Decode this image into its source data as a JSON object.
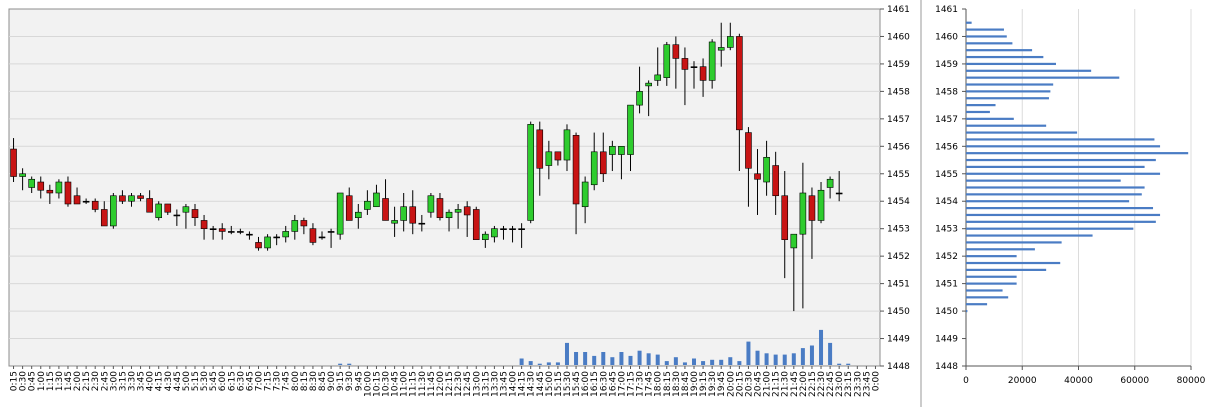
{
  "chart_data": [
    {
      "type": "candlestick",
      "colors": {
        "up": "#2ecc2e",
        "down": "#c81414",
        "volume": "#4a7cc4",
        "plot_bg": "#f2f2f2",
        "grid": "#d8d8d8"
      },
      "ylim": [
        1448,
        1461
      ],
      "yticks": [
        "1448",
        "1449",
        "1450",
        "1451",
        "1452",
        "1453",
        "1454",
        "1455",
        "1456",
        "1457",
        "1458",
        "1459",
        "1460",
        "1461"
      ],
      "xticks": [
        "0:15",
        "0:30",
        "0:45",
        "1:00",
        "1:15",
        "1:30",
        "1:45",
        "2:00",
        "2:15",
        "2:30",
        "2:45",
        "3:00",
        "3:15",
        "3:30",
        "3:45",
        "4:00",
        "4:15",
        "4:30",
        "4:45",
        "5:00",
        "5:15",
        "5:30",
        "5:45",
        "6:00",
        "6:15",
        "6:30",
        "6:45",
        "7:00",
        "7:15",
        "7:30",
        "7:45",
        "8:00",
        "8:15",
        "8:30",
        "8:45",
        "9:00",
        "9:15",
        "9:30",
        "9:45",
        "10:00",
        "10:15",
        "10:30",
        "10:45",
        "11:00",
        "11:15",
        "11:30",
        "11:45",
        "12:00",
        "12:15",
        "12:30",
        "12:45",
        "13:00",
        "13:15",
        "13:30",
        "13:45",
        "14:00",
        "14:15",
        "14:30",
        "14:45",
        "15:00",
        "15:15",
        "15:30",
        "15:45",
        "16:00",
        "16:15",
        "16:30",
        "16:45",
        "17:00",
        "17:15",
        "17:30",
        "17:45",
        "18:00",
        "18:15",
        "18:30",
        "18:45",
        "19:00",
        "19:15",
        "19:30",
        "19:45",
        "20:00",
        "20:15",
        "20:30",
        "20:45",
        "21:00",
        "21:15",
        "21:30",
        "21:45",
        "22:00",
        "22:15",
        "22:30",
        "22:45",
        "23:00",
        "23:15",
        "23:30",
        "23:45",
        "0:00"
      ],
      "candles": [
        {
          "x": "0:15",
          "o": 1455.9,
          "h": 1456.3,
          "l": 1454.7,
          "c": 1454.9
        },
        {
          "x": "0:30",
          "o": 1454.9,
          "h": 1455.2,
          "l": 1454.4,
          "c": 1455.0
        },
        {
          "x": "0:45",
          "o": 1454.5,
          "h": 1454.9,
          "l": 1454.3,
          "c": 1454.8
        },
        {
          "x": "1:00",
          "o": 1454.7,
          "h": 1454.9,
          "l": 1454.1,
          "c": 1454.4
        },
        {
          "x": "1:15",
          "o": 1454.4,
          "h": 1454.6,
          "l": 1453.9,
          "c": 1454.3
        },
        {
          "x": "1:30",
          "o": 1454.3,
          "h": 1454.8,
          "l": 1454.1,
          "c": 1454.7
        },
        {
          "x": "1:45",
          "o": 1454.7,
          "h": 1454.9,
          "l": 1453.8,
          "c": 1453.9
        },
        {
          "x": "2:00",
          "o": 1454.2,
          "h": 1454.5,
          "l": 1453.9,
          "c": 1453.9
        },
        {
          "x": "2:15",
          "o": 1454.0,
          "h": 1454.1,
          "l": 1453.9,
          "c": 1454.0
        },
        {
          "x": "2:30",
          "o": 1454.0,
          "h": 1454.1,
          "l": 1453.6,
          "c": 1453.7
        },
        {
          "x": "2:45",
          "o": 1453.7,
          "h": 1454.0,
          "l": 1453.1,
          "c": 1453.1
        },
        {
          "x": "3:00",
          "o": 1453.1,
          "h": 1454.3,
          "l": 1453.0,
          "c": 1454.2
        },
        {
          "x": "3:15",
          "o": 1454.2,
          "h": 1454.4,
          "l": 1453.9,
          "c": 1454.0
        },
        {
          "x": "3:30",
          "o": 1454.0,
          "h": 1454.3,
          "l": 1453.8,
          "c": 1454.2
        },
        {
          "x": "3:45",
          "o": 1454.2,
          "h": 1454.3,
          "l": 1454.0,
          "c": 1454.1
        },
        {
          "x": "4:00",
          "o": 1454.1,
          "h": 1454.4,
          "l": 1453.6,
          "c": 1453.6
        },
        {
          "x": "4:15",
          "o": 1453.4,
          "h": 1454.0,
          "l": 1453.3,
          "c": 1453.9
        },
        {
          "x": "4:30",
          "o": 1453.9,
          "h": 1453.9,
          "l": 1453.5,
          "c": 1453.6
        },
        {
          "x": "4:45",
          "o": 1453.5,
          "h": 1453.7,
          "l": 1453.1,
          "c": 1453.5
        },
        {
          "x": "5:00",
          "o": 1453.6,
          "h": 1453.9,
          "l": 1453.0,
          "c": 1453.8
        },
        {
          "x": "5:15",
          "o": 1453.7,
          "h": 1453.9,
          "l": 1453.1,
          "c": 1453.4
        },
        {
          "x": "5:30",
          "o": 1453.3,
          "h": 1453.5,
          "l": 1452.6,
          "c": 1453.0
        },
        {
          "x": "5:45",
          "o": 1453.0,
          "h": 1453.1,
          "l": 1452.6,
          "c": 1453.0
        },
        {
          "x": "6:00",
          "o": 1453.0,
          "h": 1453.2,
          "l": 1452.6,
          "c": 1452.9
        },
        {
          "x": "6:15",
          "o": 1452.9,
          "h": 1453.1,
          "l": 1452.8,
          "c": 1452.9
        },
        {
          "x": "6:30",
          "o": 1452.9,
          "h": 1453.0,
          "l": 1452.8,
          "c": 1452.9
        },
        {
          "x": "6:45",
          "o": 1452.8,
          "h": 1452.9,
          "l": 1452.6,
          "c": 1452.8
        },
        {
          "x": "7:00",
          "o": 1452.5,
          "h": 1452.7,
          "l": 1452.2,
          "c": 1452.3
        },
        {
          "x": "7:15",
          "o": 1452.3,
          "h": 1452.8,
          "l": 1452.2,
          "c": 1452.7
        },
        {
          "x": "7:30",
          "o": 1452.7,
          "h": 1452.8,
          "l": 1452.4,
          "c": 1452.7
        },
        {
          "x": "7:45",
          "o": 1452.7,
          "h": 1453.1,
          "l": 1452.5,
          "c": 1452.9
        },
        {
          "x": "8:00",
          "o": 1452.9,
          "h": 1453.5,
          "l": 1452.6,
          "c": 1453.3
        },
        {
          "x": "8:15",
          "o": 1453.3,
          "h": 1453.4,
          "l": 1452.8,
          "c": 1453.1
        },
        {
          "x": "8:30",
          "o": 1453.0,
          "h": 1453.2,
          "l": 1452.4,
          "c": 1452.5
        },
        {
          "x": "8:45",
          "o": 1452.7,
          "h": 1452.9,
          "l": 1452.6,
          "c": 1452.7
        },
        {
          "x": "9:00",
          "o": 1452.9,
          "h": 1453.0,
          "l": 1452.3,
          "c": 1452.9
        },
        {
          "x": "9:15",
          "o": 1452.8,
          "h": 1454.3,
          "l": 1452.6,
          "c": 1454.3
        },
        {
          "x": "9:30",
          "o": 1454.2,
          "h": 1454.5,
          "l": 1453.3,
          "c": 1453.3
        },
        {
          "x": "9:45",
          "o": 1453.4,
          "h": 1453.9,
          "l": 1453.0,
          "c": 1453.6
        },
        {
          "x": "10:00",
          "o": 1453.7,
          "h": 1454.4,
          "l": 1453.5,
          "c": 1454.0
        },
        {
          "x": "10:15",
          "o": 1453.8,
          "h": 1454.6,
          "l": 1453.8,
          "c": 1454.3
        },
        {
          "x": "10:30",
          "o": 1454.1,
          "h": 1454.8,
          "l": 1453.3,
          "c": 1453.3
        },
        {
          "x": "10:45",
          "o": 1453.2,
          "h": 1453.8,
          "l": 1452.7,
          "c": 1453.3
        },
        {
          "x": "11:00",
          "o": 1453.3,
          "h": 1454.3,
          "l": 1452.9,
          "c": 1453.8
        },
        {
          "x": "11:15",
          "o": 1453.8,
          "h": 1454.4,
          "l": 1452.8,
          "c": 1453.2
        },
        {
          "x": "11:30",
          "o": 1453.2,
          "h": 1453.5,
          "l": 1452.9,
          "c": 1453.2
        },
        {
          "x": "11:45",
          "o": 1453.6,
          "h": 1454.3,
          "l": 1453.4,
          "c": 1454.2
        },
        {
          "x": "12:00",
          "o": 1454.1,
          "h": 1454.3,
          "l": 1453.3,
          "c": 1453.4
        },
        {
          "x": "12:15",
          "o": 1453.4,
          "h": 1453.7,
          "l": 1452.9,
          "c": 1453.6
        },
        {
          "x": "12:30",
          "o": 1453.6,
          "h": 1453.9,
          "l": 1453.0,
          "c": 1453.7
        },
        {
          "x": "12:45",
          "o": 1453.8,
          "h": 1454.0,
          "l": 1452.7,
          "c": 1453.5
        },
        {
          "x": "13:00",
          "o": 1453.7,
          "h": 1453.8,
          "l": 1452.6,
          "c": 1452.6
        },
        {
          "x": "13:15",
          "o": 1452.6,
          "h": 1452.9,
          "l": 1452.3,
          "c": 1452.8
        },
        {
          "x": "13:30",
          "o": 1452.7,
          "h": 1453.1,
          "l": 1452.5,
          "c": 1453.0
        },
        {
          "x": "13:45",
          "o": 1453.0,
          "h": 1453.1,
          "l": 1452.6,
          "c": 1453.0
        },
        {
          "x": "14:00",
          "o": 1453.0,
          "h": 1453.1,
          "l": 1452.5,
          "c": 1453.0
        },
        {
          "x": "14:15",
          "o": 1453.0,
          "h": 1453.2,
          "l": 1452.3,
          "c": 1453.0
        },
        {
          "x": "14:30",
          "o": 1453.3,
          "h": 1456.9,
          "l": 1453.2,
          "c": 1456.8
        },
        {
          "x": "14:45",
          "o": 1456.6,
          "h": 1456.9,
          "l": 1454.2,
          "c": 1455.2
        },
        {
          "x": "15:00",
          "o": 1455.3,
          "h": 1456.2,
          "l": 1454.8,
          "c": 1455.8
        },
        {
          "x": "15:15",
          "o": 1455.8,
          "h": 1455.8,
          "l": 1455.3,
          "c": 1455.5
        },
        {
          "x": "15:30",
          "o": 1455.5,
          "h": 1456.8,
          "l": 1455.1,
          "c": 1456.6
        },
        {
          "x": "15:45",
          "o": 1456.4,
          "h": 1456.5,
          "l": 1452.8,
          "c": 1453.9
        },
        {
          "x": "16:00",
          "o": 1453.8,
          "h": 1454.9,
          "l": 1453.2,
          "c": 1454.7
        },
        {
          "x": "16:15",
          "o": 1454.6,
          "h": 1456.5,
          "l": 1454.4,
          "c": 1455.8
        },
        {
          "x": "16:30",
          "o": 1455.8,
          "h": 1456.5,
          "l": 1454.7,
          "c": 1455.0
        },
        {
          "x": "16:45",
          "o": 1455.7,
          "h": 1456.2,
          "l": 1455.1,
          "c": 1456.0
        },
        {
          "x": "17:00",
          "o": 1455.7,
          "h": 1456.0,
          "l": 1454.8,
          "c": 1456.0
        },
        {
          "x": "17:15",
          "o": 1455.7,
          "h": 1457.5,
          "l": 1455.1,
          "c": 1457.5
        },
        {
          "x": "17:30",
          "o": 1457.5,
          "h": 1458.9,
          "l": 1457.2,
          "c": 1458.0
        },
        {
          "x": "17:45",
          "o": 1458.2,
          "h": 1458.4,
          "l": 1457.1,
          "c": 1458.3
        },
        {
          "x": "18:00",
          "o": 1458.4,
          "h": 1459.6,
          "l": 1458.2,
          "c": 1458.6
        },
        {
          "x": "18:15",
          "o": 1458.5,
          "h": 1459.8,
          "l": 1458.2,
          "c": 1459.7
        },
        {
          "x": "18:30",
          "o": 1459.7,
          "h": 1460.0,
          "l": 1458.1,
          "c": 1459.2
        },
        {
          "x": "18:45",
          "o": 1459.2,
          "h": 1459.6,
          "l": 1457.5,
          "c": 1458.8
        },
        {
          "x": "19:00",
          "o": 1458.9,
          "h": 1459.1,
          "l": 1458.1,
          "c": 1458.9
        },
        {
          "x": "19:15",
          "o": 1458.9,
          "h": 1459.2,
          "l": 1457.8,
          "c": 1458.4
        },
        {
          "x": "19:30",
          "o": 1458.4,
          "h": 1459.9,
          "l": 1458.1,
          "c": 1459.8
        },
        {
          "x": "19:45",
          "o": 1459.5,
          "h": 1460.5,
          "l": 1458.9,
          "c": 1459.6
        },
        {
          "x": "20:00",
          "o": 1459.6,
          "h": 1460.5,
          "l": 1459.5,
          "c": 1460.0
        },
        {
          "x": "20:15",
          "o": 1460.0,
          "h": 1460.1,
          "l": 1455.1,
          "c": 1456.6
        },
        {
          "x": "20:30",
          "o": 1456.5,
          "h": 1456.7,
          "l": 1453.8,
          "c": 1455.2
        },
        {
          "x": "20:45",
          "o": 1455.0,
          "h": 1455.9,
          "l": 1453.5,
          "c": 1454.8
        },
        {
          "x": "21:00",
          "o": 1454.7,
          "h": 1456.2,
          "l": 1454.2,
          "c": 1455.6
        },
        {
          "x": "21:15",
          "o": 1455.3,
          "h": 1455.8,
          "l": 1453.5,
          "c": 1454.2
        },
        {
          "x": "21:30",
          "o": 1454.2,
          "h": 1455.1,
          "l": 1451.2,
          "c": 1452.6
        },
        {
          "x": "21:45",
          "o": 1452.3,
          "h": 1452.8,
          "l": 1450.0,
          "c": 1452.8
        },
        {
          "x": "22:00",
          "o": 1452.8,
          "h": 1455.4,
          "l": 1450.1,
          "c": 1454.3
        },
        {
          "x": "22:15",
          "o": 1454.2,
          "h": 1454.5,
          "l": 1451.9,
          "c": 1453.3
        },
        {
          "x": "22:30",
          "o": 1453.3,
          "h": 1454.7,
          "l": 1453.2,
          "c": 1454.4
        },
        {
          "x": "22:45",
          "o": 1454.5,
          "h": 1454.9,
          "l": 1454.1,
          "c": 1454.8
        },
        {
          "x": "23:00",
          "o": 1454.3,
          "h": 1455.1,
          "l": 1454.0,
          "c": 1454.3
        }
      ],
      "volume": [
        0,
        0,
        0,
        0,
        0,
        0,
        0,
        0,
        0,
        0,
        0,
        0,
        0,
        0,
        0,
        0,
        0,
        0,
        0,
        0,
        0,
        0,
        0,
        0,
        0,
        0,
        0,
        0,
        0,
        0,
        0,
        0,
        0,
        0,
        0,
        0,
        1,
        1,
        0,
        0,
        0,
        0,
        0,
        0,
        0,
        0,
        0,
        0,
        0,
        0,
        0,
        0,
        0,
        0,
        0,
        0,
        5,
        3,
        1,
        2,
        2,
        17,
        10,
        10,
        7,
        10,
        6,
        10,
        7,
        11,
        9,
        8,
        3,
        6,
        2,
        5,
        3,
        4,
        4,
        6,
        3,
        18,
        11,
        9,
        8,
        8,
        9,
        13,
        15,
        27,
        17,
        1,
        1,
        0,
        0,
        0
      ],
      "volume_max": 30
    },
    {
      "type": "bar",
      "orientation": "horizontal",
      "xlim": [
        0,
        80000
      ],
      "xticks": [
        "0",
        "20000",
        "40000",
        "60000",
        "80000"
      ],
      "ylim": [
        1448,
        1461
      ],
      "yticks": [
        "1448",
        "1449",
        "1450",
        "1451",
        "1452",
        "1453",
        "1454",
        "1455",
        "1456",
        "1457",
        "1458",
        "1459",
        "1460",
        "1461"
      ],
      "bin_size": 0.25,
      "bars": [
        {
          "price": 1450.0,
          "value": 500
        },
        {
          "price": 1450.25,
          "value": 7500
        },
        {
          "price": 1450.5,
          "value": 15000
        },
        {
          "price": 1450.75,
          "value": 13000
        },
        {
          "price": 1451.0,
          "value": 18000
        },
        {
          "price": 1451.25,
          "value": 18000
        },
        {
          "price": 1451.5,
          "value": 28500
        },
        {
          "price": 1451.75,
          "value": 33500
        },
        {
          "price": 1452.0,
          "value": 18000
        },
        {
          "price": 1452.25,
          "value": 24500
        },
        {
          "price": 1452.5,
          "value": 34000
        },
        {
          "price": 1452.75,
          "value": 45000
        },
        {
          "price": 1453.0,
          "value": 59500
        },
        {
          "price": 1453.25,
          "value": 67500
        },
        {
          "price": 1453.5,
          "value": 69000
        },
        {
          "price": 1453.75,
          "value": 66500
        },
        {
          "price": 1454.0,
          "value": 58000
        },
        {
          "price": 1454.25,
          "value": 62500
        },
        {
          "price": 1454.5,
          "value": 63500
        },
        {
          "price": 1454.75,
          "value": 55000
        },
        {
          "price": 1455.0,
          "value": 69000
        },
        {
          "price": 1455.25,
          "value": 63500
        },
        {
          "price": 1455.5,
          "value": 67500
        },
        {
          "price": 1455.75,
          "value": 79000
        },
        {
          "price": 1456.0,
          "value": 69000
        },
        {
          "price": 1456.25,
          "value": 67000
        },
        {
          "price": 1456.5,
          "value": 39500
        },
        {
          "price": 1456.75,
          "value": 28500
        },
        {
          "price": 1457.0,
          "value": 17000
        },
        {
          "price": 1457.25,
          "value": 8500
        },
        {
          "price": 1457.5,
          "value": 10500
        },
        {
          "price": 1457.75,
          "value": 29500
        },
        {
          "price": 1458.0,
          "value": 30000
        },
        {
          "price": 1458.25,
          "value": 31000
        },
        {
          "price": 1458.5,
          "value": 54500
        },
        {
          "price": 1458.75,
          "value": 44500
        },
        {
          "price": 1459.0,
          "value": 32000
        },
        {
          "price": 1459.25,
          "value": 27500
        },
        {
          "price": 1459.5,
          "value": 23500
        },
        {
          "price": 1459.75,
          "value": 16500
        },
        {
          "price": 1460.0,
          "value": 14500
        },
        {
          "price": 1460.25,
          "value": 13500
        },
        {
          "price": 1460.5,
          "value": 2000
        }
      ]
    }
  ]
}
